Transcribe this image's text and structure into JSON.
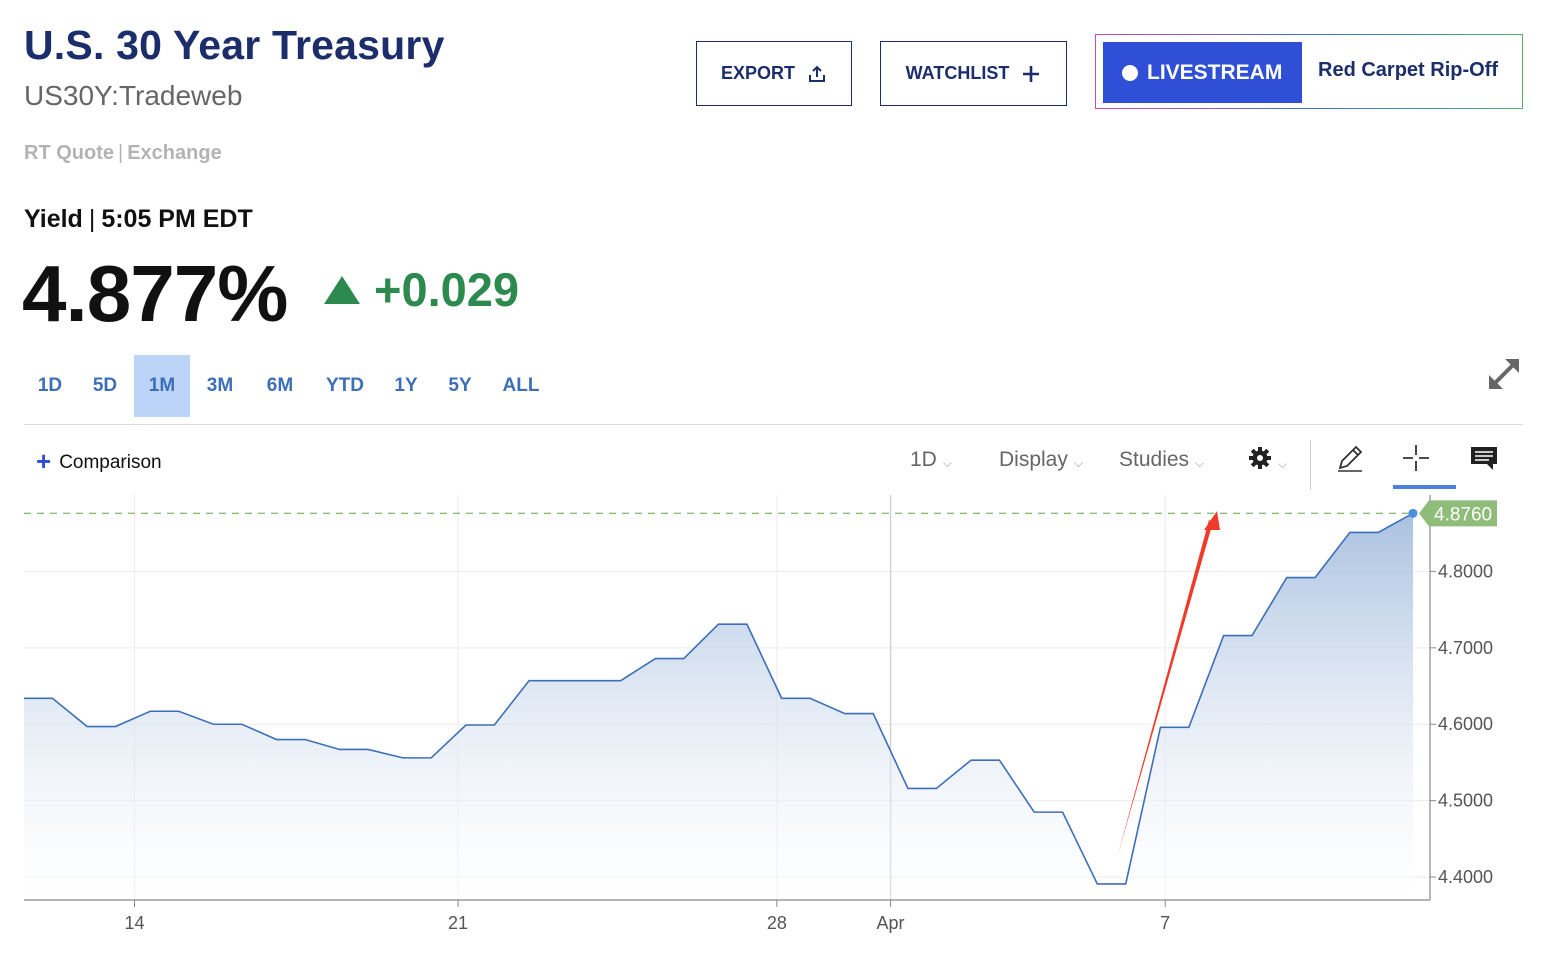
{
  "header": {
    "title": "U.S. 30 Year Treasury",
    "symbol": "US30Y:Tradeweb",
    "quote_type": "RT Quote",
    "quote_separator": "|",
    "quote_source": "Exchange"
  },
  "actions": {
    "export_label": "EXPORT",
    "watchlist_label": "WATCHLIST"
  },
  "livestream": {
    "button_label": "LIVESTREAM",
    "show_title": "Red Carpet Rip-Off"
  },
  "quote": {
    "label": "Yield",
    "separator": "|",
    "time": "5:05 PM EDT",
    "price": "4.877%",
    "change": "+0.029",
    "direction": "up",
    "up_color": "#2d8a4e"
  },
  "ranges": {
    "items": [
      "1D",
      "5D",
      "1M",
      "3M",
      "6M",
      "YTD",
      "1Y",
      "5Y",
      "ALL"
    ],
    "active": "1M"
  },
  "toolbar": {
    "comparison_label": "Comparison",
    "interval_label": "1D",
    "display_label": "Display",
    "studies_label": "Studies",
    "icons": [
      "gear-icon",
      "pencil-icon",
      "crosshair-icon",
      "comment-icon",
      "expand-icon",
      "share-icon",
      "plus-icon"
    ]
  },
  "chart_data": {
    "type": "area",
    "series": [
      {
        "name": "US30Y",
        "values": [
          4.634,
          4.597,
          4.617,
          4.6,
          4.58,
          4.567,
          4.556,
          4.599,
          4.657,
          4.657,
          4.686,
          4.731,
          4.634,
          4.614,
          4.516,
          4.553,
          4.485,
          4.391,
          4.596,
          4.716,
          4.792,
          4.851,
          4.876
        ]
      }
    ],
    "x_tick_labels": [
      "14",
      "21",
      "28",
      "Apr",
      "7"
    ],
    "y_tick_labels": [
      "4.8000",
      "4.7000",
      "4.6000",
      "4.5000",
      "4.4000"
    ],
    "ylim": [
      4.37,
      4.9
    ],
    "last_value_label": "4.8760",
    "line_color": "#3d6fb8",
    "fill_color": "#a9c1e0",
    "last_value_badge_color": "#8fbc79",
    "annotation_arrow_color": "#f03a2a",
    "grid": true
  }
}
